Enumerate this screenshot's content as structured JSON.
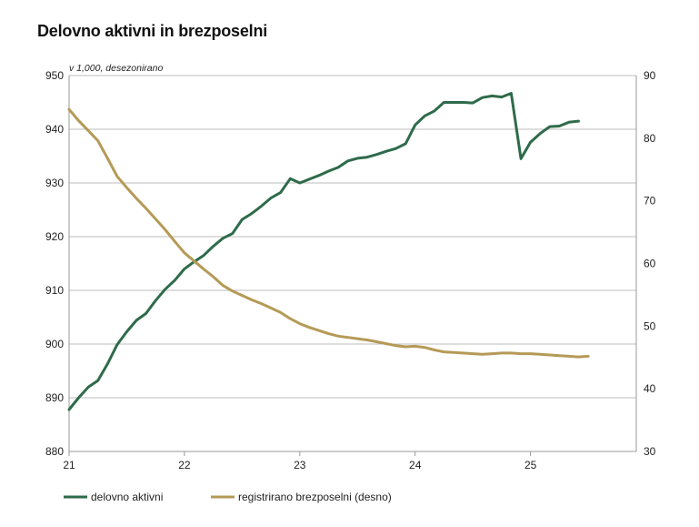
{
  "title": "Delovno aktivni in brezposelni",
  "chart_data": {
    "type": "line",
    "title": "Delovno aktivni in brezposelni",
    "unit_label": "v 1,000, desezonirano",
    "x_ticks": [
      "21",
      "22",
      "23",
      "24",
      "25"
    ],
    "x_range": [
      2021.0,
      2025.917
    ],
    "y_left": {
      "range": [
        880,
        950
      ],
      "ticks": [
        "880",
        "890",
        "900",
        "910",
        "920",
        "930",
        "940",
        "950"
      ]
    },
    "y_right": {
      "range": [
        30,
        90
      ],
      "ticks": [
        "30",
        "40",
        "50",
        "60",
        "70",
        "80",
        "90"
      ]
    },
    "grid": true,
    "legend_position": "bottom-left",
    "series": [
      {
        "name": "delovno aktivni",
        "axis": "left",
        "color": "#2e6b4a",
        "x": [
          2021.0,
          2021.083,
          2021.167,
          2021.25,
          2021.333,
          2021.417,
          2021.5,
          2021.583,
          2021.667,
          2021.75,
          2021.833,
          2021.917,
          2022.0,
          2022.083,
          2022.167,
          2022.25,
          2022.333,
          2022.417,
          2022.5,
          2022.583,
          2022.667,
          2022.75,
          2022.833,
          2022.917,
          2023.0,
          2023.083,
          2023.167,
          2023.25,
          2023.333,
          2023.417,
          2023.5,
          2023.583,
          2023.667,
          2023.75,
          2023.833,
          2023.917,
          2024.0,
          2024.083,
          2024.167,
          2024.25,
          2024.333,
          2024.417,
          2024.5,
          2024.583,
          2024.667,
          2024.75,
          2024.833,
          2024.917,
          2025.0,
          2025.083,
          2025.167,
          2025.25,
          2025.333,
          2025.417
        ],
        "values": [
          887.8,
          890.0,
          892.0,
          893.2,
          896.3,
          899.9,
          902.3,
          904.4,
          905.7,
          908.1,
          910.2,
          911.9,
          914.0,
          915.3,
          916.5,
          918.2,
          919.7,
          920.6,
          923.2,
          924.3,
          925.7,
          927.2,
          928.2,
          930.8,
          930.0,
          930.7,
          931.4,
          932.2,
          932.9,
          934.1,
          934.6,
          934.8,
          935.3,
          935.9,
          936.4,
          937.3,
          940.8,
          942.5,
          943.4,
          945.0,
          945.0,
          945.0,
          944.9,
          945.9,
          946.2,
          946.0,
          946.7,
          934.5,
          937.6,
          939.2,
          940.5,
          940.6,
          941.3,
          941.5
        ]
      },
      {
        "name": "registrirano brezposelni (desno)",
        "axis": "right",
        "color": "#b59a57",
        "x": [
          2021.0,
          2021.083,
          2021.167,
          2021.25,
          2021.333,
          2021.417,
          2021.5,
          2021.583,
          2021.667,
          2021.75,
          2021.833,
          2021.917,
          2022.0,
          2022.083,
          2022.167,
          2022.25,
          2022.333,
          2022.417,
          2022.5,
          2022.583,
          2022.667,
          2022.75,
          2022.833,
          2022.917,
          2023.0,
          2023.083,
          2023.167,
          2023.25,
          2023.333,
          2023.417,
          2023.5,
          2023.583,
          2023.667,
          2023.75,
          2023.833,
          2023.917,
          2024.0,
          2024.083,
          2024.167,
          2024.25,
          2024.333,
          2024.417,
          2024.5,
          2024.583,
          2024.667,
          2024.75,
          2024.833,
          2024.917,
          2025.0,
          2025.083,
          2025.167,
          2025.25,
          2025.333,
          2025.417,
          2025.5
        ],
        "values": [
          84.6,
          82.8,
          81.2,
          79.6,
          76.8,
          73.9,
          72.1,
          70.4,
          68.8,
          67.1,
          65.4,
          63.5,
          61.7,
          60.4,
          59.1,
          57.9,
          56.5,
          55.6,
          54.9,
          54.2,
          53.6,
          52.9,
          52.2,
          51.2,
          50.4,
          49.8,
          49.3,
          48.8,
          48.4,
          48.2,
          48.0,
          47.8,
          47.5,
          47.2,
          46.9,
          46.7,
          46.8,
          46.6,
          46.2,
          45.9,
          45.8,
          45.7,
          45.6,
          45.5,
          45.6,
          45.7,
          45.7,
          45.6,
          45.6,
          45.5,
          45.4,
          45.3,
          45.2,
          45.1,
          45.2
        ]
      }
    ]
  }
}
